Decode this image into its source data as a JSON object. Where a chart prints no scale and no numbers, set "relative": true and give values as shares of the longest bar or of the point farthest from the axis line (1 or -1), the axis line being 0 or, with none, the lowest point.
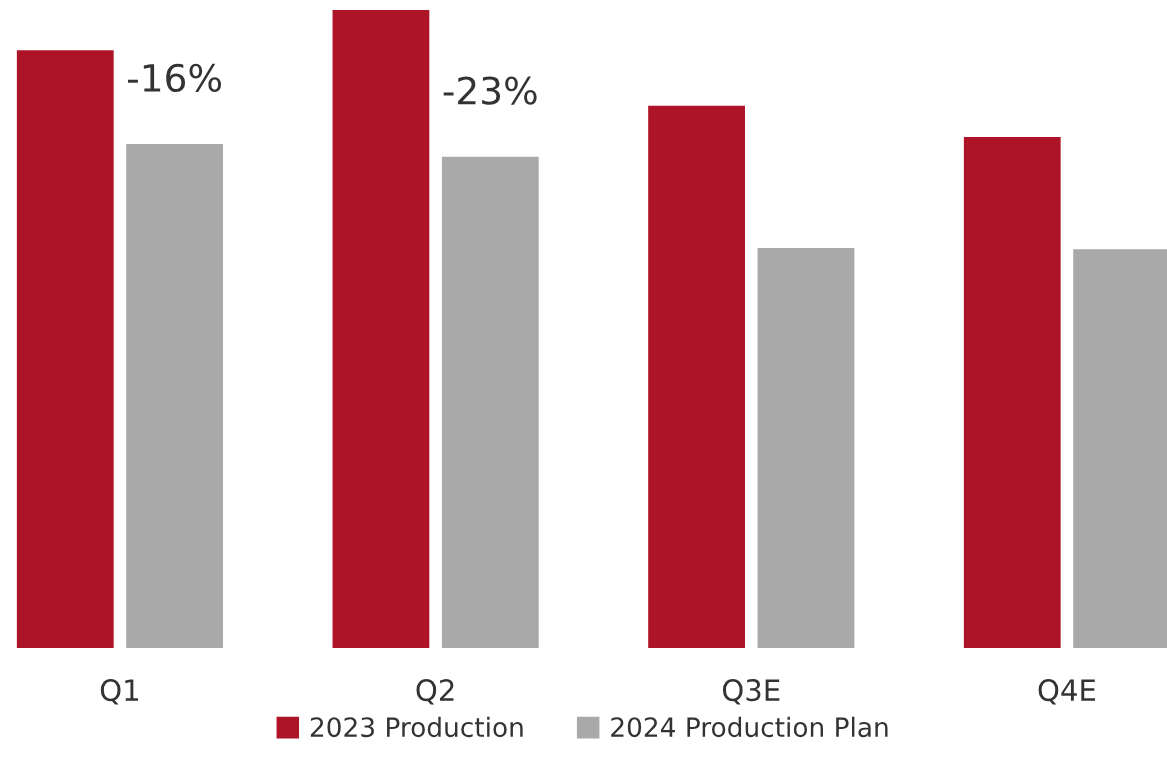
{
  "chart_data": {
    "type": "bar",
    "relative": true,
    "categories": [
      "Q1",
      "Q2",
      "Q3E",
      "Q4E"
    ],
    "series": [
      {
        "name": "2023 Production",
        "color": "#ae1428",
        "values": [
          0.937,
          1,
          0.85,
          0.801
        ]
      },
      {
        "name": "2024 Production Plan",
        "color": "#a9a9a9",
        "values": [
          0.79,
          0.77,
          0.627,
          0.625
        ]
      }
    ],
    "annotations": [
      "-16%",
      "-23%"
    ],
    "grid": false,
    "legend": "bottom"
  }
}
